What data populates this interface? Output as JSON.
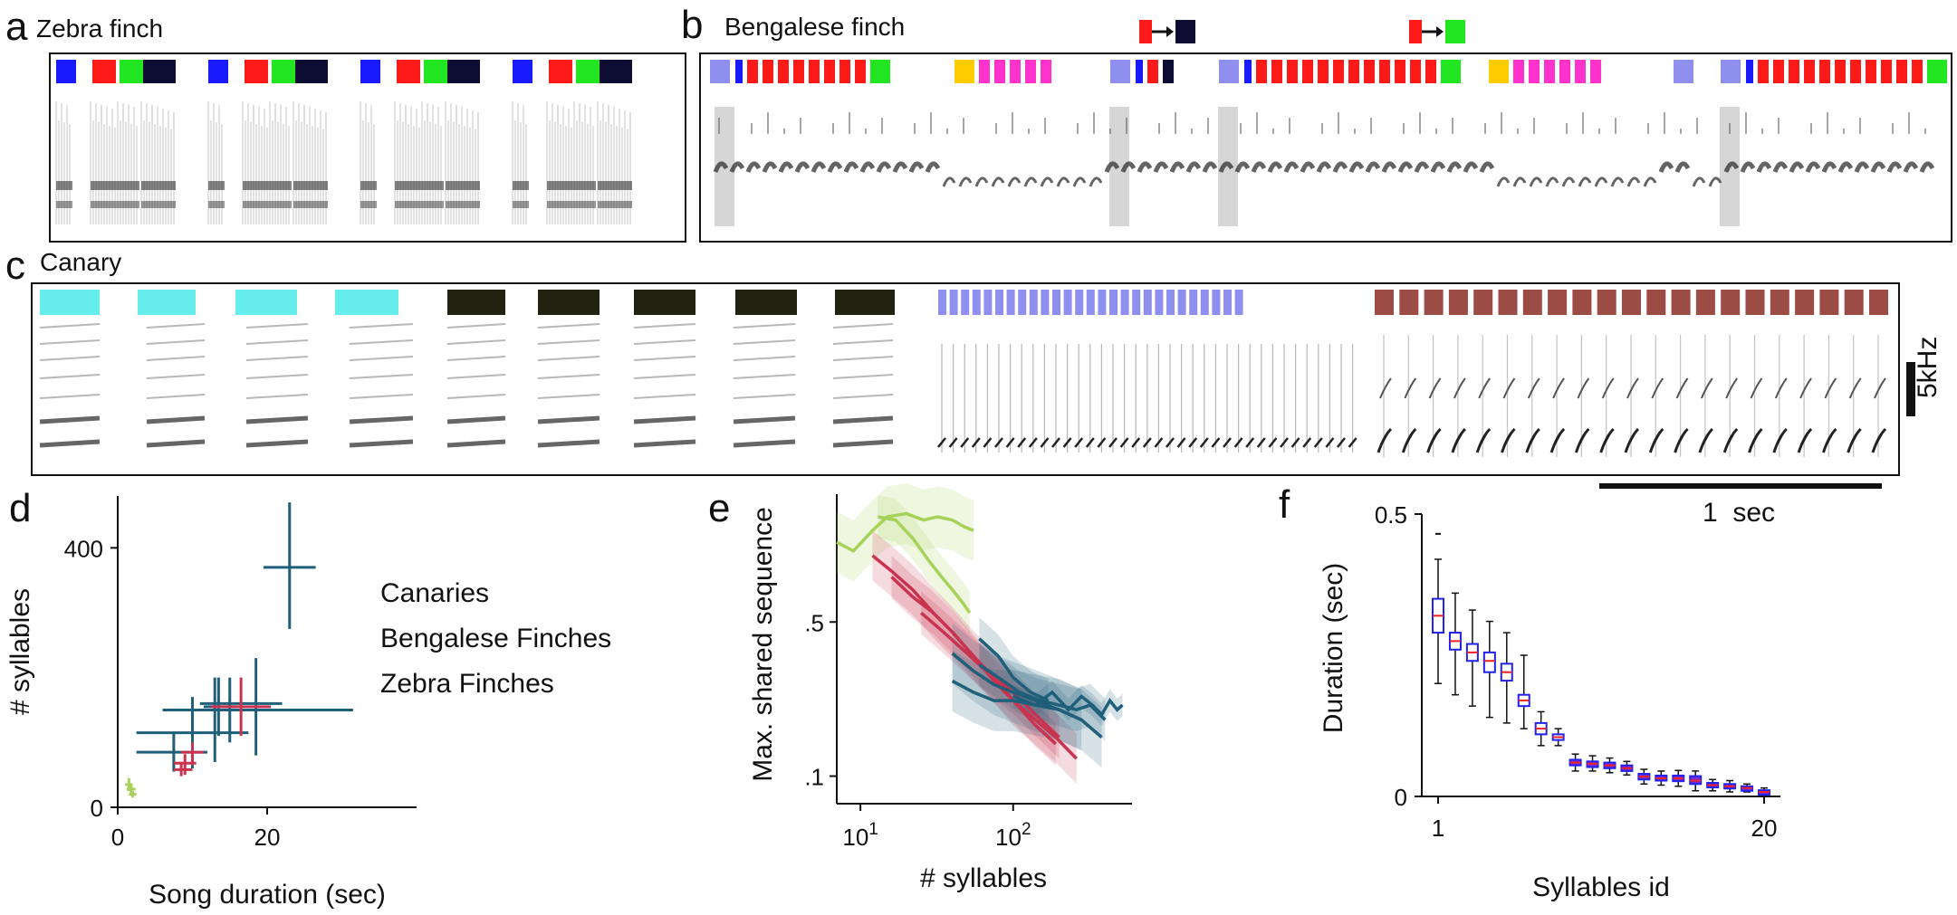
{
  "panels": {
    "a": {
      "letter": "a",
      "title": "Zebra finch"
    },
    "b": {
      "letter": "b",
      "title": "Bengalese finch"
    },
    "c": {
      "letter": "c",
      "title": "Canary"
    },
    "d": {
      "letter": "d"
    },
    "e": {
      "letter": "e"
    },
    "f": {
      "letter": "f"
    }
  },
  "scale": {
    "freq_label": "5kHz",
    "time_label": "1  sec"
  },
  "colors": {
    "blue": "#1a1aff",
    "red": "#ff1a1a",
    "green": "#22e622",
    "navy": "#0d0d33",
    "lavender": "#8f8fef",
    "magenta": "#ff33cc",
    "yellow": "#ffcc00",
    "cyan": "#66eeee",
    "dark": "#222211",
    "brown": "#9b4c44"
  },
  "syllable_bars": {
    "a": [
      "blue",
      "red",
      "green",
      "navy",
      "blue",
      "red",
      "green",
      "navy",
      "blue",
      "red",
      "green",
      "navy",
      "blue",
      "red",
      "green",
      "navy"
    ],
    "b_groups": [
      [
        "lavender",
        "blue",
        "red",
        "red",
        "red",
        "red",
        "red",
        "red",
        "red",
        "red",
        "green"
      ],
      [
        "yellow",
        "magenta",
        "magenta",
        "magenta",
        "magenta",
        "magenta"
      ],
      [
        "lavender",
        "blue",
        "red",
        "navy"
      ],
      [
        "lavender",
        "blue",
        "red",
        "red",
        "red",
        "red",
        "red",
        "red",
        "red",
        "red",
        "red",
        "red",
        "red",
        "red",
        "green"
      ],
      [
        "yellow",
        "magenta",
        "magenta",
        "magenta",
        "magenta",
        "magenta",
        "magenta"
      ],
      [
        "lavender"
      ],
      [
        "lavender",
        "blue",
        "red",
        "red",
        "red",
        "red",
        "red",
        "red",
        "red",
        "red",
        "red",
        "red",
        "red",
        "green"
      ]
    ],
    "b_transitions": [
      [
        "red",
        "navy"
      ],
      [
        "red",
        "green"
      ]
    ],
    "c": {
      "cyan_count": 4,
      "dark_count": 5,
      "lavender_count": 27,
      "brown_count": 21
    }
  },
  "chart_data": [
    {
      "panel": "d",
      "type": "scatter",
      "xlabel": "Song duration (sec)",
      "ylabel": "# syllables",
      "xticks": [
        "0",
        "20"
      ],
      "yticks": [
        "0",
        "400"
      ],
      "xlim": [
        0,
        40
      ],
      "ylim": [
        0,
        480
      ],
      "legend": [
        "Canaries",
        "Bengalese Finches",
        "Zebra Finches"
      ],
      "legend_colors": [
        "#1f5f7a",
        "#c8334f",
        "#a6d25a"
      ],
      "series": [
        {
          "name": "Canaries",
          "points": [
            {
              "x": 23.0,
              "y": 370,
              "xerr": [
                19.5,
                26.5
              ],
              "yerr": [
                275,
                470
              ]
            },
            {
              "x": 15.0,
              "y": 160,
              "xerr": [
                11.0,
                22.0
              ],
              "yerr": [
                100,
                200
              ]
            },
            {
              "x": 13.0,
              "y": 150,
              "xerr": [
                7.0,
                19.0
              ],
              "yerr": [
                70,
                200
              ]
            },
            {
              "x": 10.0,
              "y": 115,
              "xerr": [
                2.5,
                17.5
              ],
              "yerr": [
                60,
                170
              ]
            },
            {
              "x": 18.5,
              "y": 150,
              "xerr": [
                6.0,
                31.5
              ],
              "yerr": [
                80,
                230
              ]
            },
            {
              "x": 7.5,
              "y": 85,
              "xerr": [
                2.5,
                12.0
              ],
              "yerr": [
                55,
                115
              ]
            },
            {
              "x": 13.5,
              "y": 155,
              "xerr": [
                11.5,
                16.0
              ],
              "yerr": [
                110,
                200
              ]
            }
          ]
        },
        {
          "name": "Bengalese Finches",
          "points": [
            {
              "x": 16.5,
              "y": 155,
              "xerr": [
                12.5,
                20.5
              ],
              "yerr": [
                110,
                200
              ]
            },
            {
              "x": 10.0,
              "y": 85,
              "xerr": [
                8.5,
                11.5
              ],
              "yerr": [
                65,
                100
              ]
            },
            {
              "x": 9.0,
              "y": 68,
              "xerr": [
                7.5,
                10.5
              ],
              "yerr": [
                50,
                82
              ]
            },
            {
              "x": 8.5,
              "y": 58,
              "xerr": [
                7.5,
                10.0
              ],
              "yerr": [
                48,
                70
              ]
            }
          ]
        },
        {
          "name": "Zebra Finches",
          "points": [
            {
              "x": 1.5,
              "y": 35,
              "xerr": [
                1.0,
                2.0
              ],
              "yerr": [
                25,
                45
              ]
            },
            {
              "x": 2.0,
              "y": 20,
              "xerr": [
                1.5,
                2.5
              ],
              "yerr": [
                15,
                25
              ]
            },
            {
              "x": 1.8,
              "y": 28,
              "xerr": [
                1.2,
                2.4
              ],
              "yerr": [
                22,
                34
              ]
            }
          ]
        }
      ]
    },
    {
      "panel": "e",
      "type": "line",
      "xlabel": "# syllables",
      "ylabel": "Max. shared sequence",
      "xscale": "log",
      "yscale": "log",
      "xticks": [
        "10^1",
        "10^2"
      ],
      "yticks": [
        ".5",
        ".1"
      ],
      "xlim": [
        7,
        600
      ],
      "ylim": [
        0.075,
        1.9
      ],
      "series": [
        {
          "group": "Zebra Finches",
          "color": "#a6d25a",
          "x": [
            7,
            9,
            12,
            15,
            20,
            26,
            32,
            40,
            48,
            55
          ],
          "y": [
            1.15,
            1.05,
            1.3,
            1.5,
            1.55,
            1.45,
            1.5,
            1.45,
            1.35,
            1.3
          ],
          "band": 0.15
        },
        {
          "group": "Zebra Finches",
          "color": "#a6d25a",
          "x": [
            13,
            17,
            22,
            28,
            34,
            40,
            46,
            52
          ],
          "y": [
            1.5,
            1.45,
            1.2,
            0.95,
            0.8,
            0.7,
            0.62,
            0.55
          ],
          "band": 0.1
        },
        {
          "group": "Bengalese Finches",
          "color": "#c8334f",
          "x": [
            12,
            16,
            22,
            30,
            40,
            55,
            75,
            100,
            140,
            190,
            260
          ],
          "y": [
            1.0,
            0.85,
            0.7,
            0.55,
            0.45,
            0.35,
            0.28,
            0.22,
            0.18,
            0.15,
            0.12
          ],
          "band": 0.12
        },
        {
          "group": "Bengalese Finches",
          "color": "#c8334f",
          "x": [
            16,
            22,
            30,
            40,
            55,
            75,
            100,
            140,
            190
          ],
          "y": [
            0.8,
            0.65,
            0.55,
            0.45,
            0.35,
            0.27,
            0.22,
            0.17,
            0.14
          ],
          "band": 0.1
        },
        {
          "group": "Bengalese Finches",
          "color": "#c8334f",
          "x": [
            25,
            35,
            50,
            70,
            100,
            140,
            200
          ],
          "y": [
            0.55,
            0.45,
            0.36,
            0.29,
            0.24,
            0.19,
            0.15
          ],
          "band": 0.1
        },
        {
          "group": "Canaries",
          "color": "#1f5f7a",
          "x": [
            40,
            55,
            75,
            100,
            140,
            200,
            280
          ],
          "y": [
            0.36,
            0.3,
            0.26,
            0.24,
            0.22,
            0.2,
            0.18
          ],
          "band": 0.15
        },
        {
          "group": "Canaries",
          "color": "#1f5f7a",
          "x": [
            40,
            55,
            75,
            100,
            140,
            200,
            280,
            380
          ],
          "y": [
            0.27,
            0.24,
            0.22,
            0.22,
            0.21,
            0.2,
            0.18,
            0.15
          ],
          "band": 0.15
        },
        {
          "group": "Canaries",
          "color": "#1f5f7a",
          "x": [
            60,
            80,
            110,
            150,
            200,
            260,
            320,
            400
          ],
          "y": [
            0.32,
            0.28,
            0.24,
            0.22,
            0.21,
            0.2,
            0.21,
            0.18
          ],
          "band": 0.1
        },
        {
          "group": "Canaries",
          "color": "#1f5f7a",
          "x": [
            100,
            140,
            180,
            230,
            280,
            330,
            380,
            430,
            480,
            520
          ],
          "y": [
            0.23,
            0.21,
            0.24,
            0.2,
            0.23,
            0.21,
            0.19,
            0.22,
            0.2,
            0.21
          ],
          "band": 0.05
        },
        {
          "group": "Canaries",
          "color": "#1f5f7a",
          "x": [
            60,
            80,
            100,
            130,
            170
          ],
          "y": [
            0.42,
            0.35,
            0.28,
            0.24,
            0.22
          ],
          "band": 0.1
        }
      ]
    },
    {
      "panel": "f",
      "type": "box",
      "xlabel": "Syllables id",
      "ylabel": "Duration (sec)",
      "xticks": [
        "1",
        "20"
      ],
      "yticks": [
        "0",
        "0.5"
      ],
      "ylim": [
        0,
        0.5
      ],
      "boxes": [
        {
          "id": 1,
          "median": 0.32,
          "q1": 0.29,
          "q3": 0.35,
          "lo": 0.2,
          "hi": 0.42,
          "outlier": 0.465
        },
        {
          "id": 2,
          "median": 0.275,
          "q1": 0.26,
          "q3": 0.29,
          "lo": 0.18,
          "hi": 0.36
        },
        {
          "id": 3,
          "median": 0.255,
          "q1": 0.24,
          "q3": 0.27,
          "lo": 0.16,
          "hi": 0.33
        },
        {
          "id": 4,
          "median": 0.24,
          "q1": 0.22,
          "q3": 0.255,
          "lo": 0.14,
          "hi": 0.31
        },
        {
          "id": 5,
          "median": 0.22,
          "q1": 0.205,
          "q3": 0.235,
          "lo": 0.13,
          "hi": 0.29
        },
        {
          "id": 6,
          "median": 0.17,
          "q1": 0.16,
          "q3": 0.18,
          "lo": 0.12,
          "hi": 0.25
        },
        {
          "id": 7,
          "median": 0.12,
          "q1": 0.11,
          "q3": 0.13,
          "lo": 0.09,
          "hi": 0.15
        },
        {
          "id": 8,
          "median": 0.105,
          "q1": 0.1,
          "q3": 0.11,
          "lo": 0.09,
          "hi": 0.12
        },
        {
          "id": 9,
          "median": 0.06,
          "q1": 0.055,
          "q3": 0.065,
          "lo": 0.045,
          "hi": 0.075
        },
        {
          "id": 10,
          "median": 0.058,
          "q1": 0.052,
          "q3": 0.062,
          "lo": 0.045,
          "hi": 0.072
        },
        {
          "id": 11,
          "median": 0.055,
          "q1": 0.05,
          "q3": 0.06,
          "lo": 0.042,
          "hi": 0.068
        },
        {
          "id": 12,
          "median": 0.05,
          "q1": 0.045,
          "q3": 0.055,
          "lo": 0.038,
          "hi": 0.062
        },
        {
          "id": 13,
          "median": 0.035,
          "q1": 0.03,
          "q3": 0.04,
          "lo": 0.022,
          "hi": 0.048
        },
        {
          "id": 14,
          "median": 0.032,
          "q1": 0.028,
          "q3": 0.037,
          "lo": 0.02,
          "hi": 0.045
        },
        {
          "id": 15,
          "median": 0.032,
          "q1": 0.027,
          "q3": 0.037,
          "lo": 0.018,
          "hi": 0.046
        },
        {
          "id": 16,
          "median": 0.028,
          "q1": 0.022,
          "q3": 0.036,
          "lo": 0.01,
          "hi": 0.045
        },
        {
          "id": 17,
          "median": 0.02,
          "q1": 0.016,
          "q3": 0.024,
          "lo": 0.01,
          "hi": 0.03
        },
        {
          "id": 18,
          "median": 0.018,
          "q1": 0.014,
          "q3": 0.022,
          "lo": 0.008,
          "hi": 0.028
        },
        {
          "id": 19,
          "median": 0.015,
          "q1": 0.012,
          "q3": 0.018,
          "lo": 0.008,
          "hi": 0.022
        },
        {
          "id": 20,
          "median": 0.008,
          "q1": 0.005,
          "q3": 0.011,
          "lo": 0.002,
          "hi": 0.015
        }
      ]
    }
  ]
}
